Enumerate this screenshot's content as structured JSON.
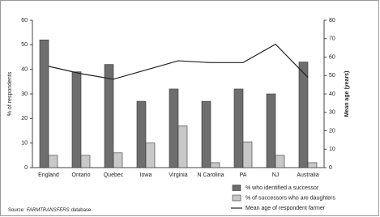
{
  "chart_data": {
    "type": "bar-line",
    "ylabel": "% of respondents",
    "y2label": "Mean age (years)",
    "categories": [
      "England",
      "Ontario",
      "Quebec",
      "Iowa",
      "Virginia",
      "N Carolina",
      "PA",
      "NJ",
      "Australia"
    ],
    "series": [
      {
        "name": "% who identified a successor",
        "type": "bar",
        "color": "#6e6e6e",
        "values": [
          52,
          39,
          42,
          27,
          32,
          27,
          32,
          30,
          43
        ]
      },
      {
        "name": "% of successors who are daughters",
        "type": "bar",
        "color": "#c8c8c8",
        "values": [
          5,
          5,
          6,
          10,
          17,
          2,
          10.5,
          5,
          2
        ]
      },
      {
        "name": "Mean age of respondent farmer",
        "type": "line",
        "axis": "y2",
        "color": "#222222",
        "values": [
          55,
          51,
          48,
          53,
          58,
          57,
          57,
          67,
          49
        ]
      }
    ],
    "ylim": [
      0,
      60
    ],
    "yticks": [
      0,
      10,
      20,
      30,
      40,
      50,
      60
    ],
    "y2lim": [
      0,
      80
    ],
    "y2ticks": [
      0,
      10,
      20,
      30,
      40,
      50,
      60,
      70,
      80
    ],
    "source": [
      "Source:",
      "FARMTRANSFERS",
      "database."
    ]
  }
}
